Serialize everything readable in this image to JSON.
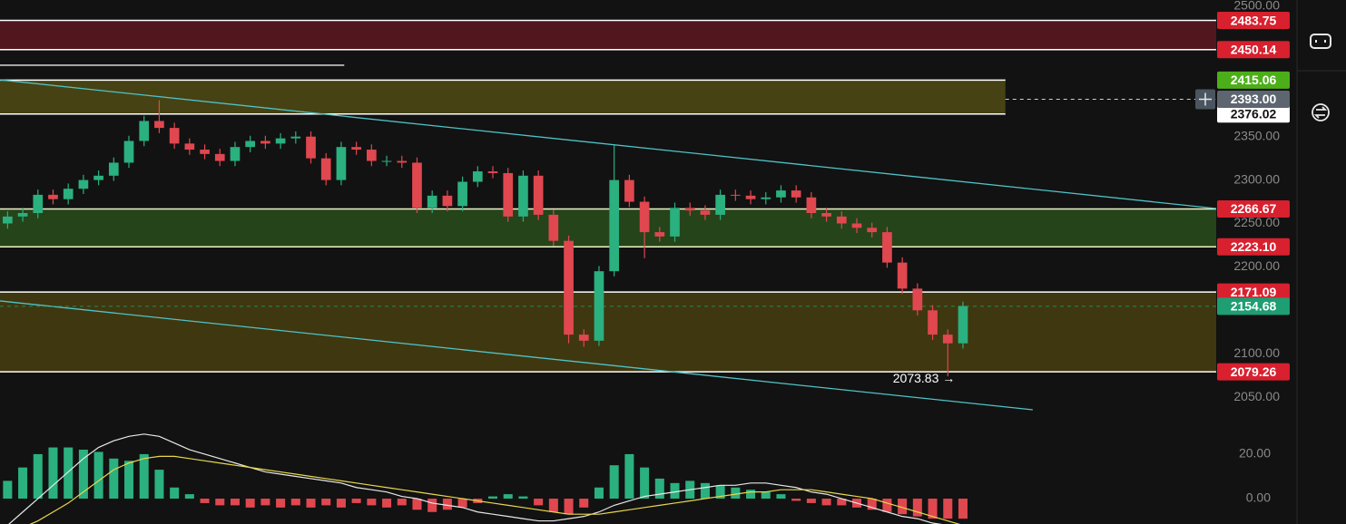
{
  "chart_data": [
    {
      "type": "candlestick",
      "xlim": [
        -0.5,
        79.7
      ],
      "ylim": [
        2016.7,
        2507.3
      ],
      "grid": false,
      "color_up": "#2bb07f",
      "color_down": "#e0474f",
      "open": [
        2250,
        2258,
        2262,
        2283,
        2278,
        2290,
        2300,
        2305,
        2320,
        2345,
        2368,
        2360,
        2342,
        2335,
        2330,
        2322,
        2338,
        2345,
        2342,
        2348,
        2350,
        2325,
        2300,
        2338,
        2335,
        2322,
        2322,
        2320,
        2268,
        2282,
        2270,
        2298,
        2310,
        2308,
        2258,
        2305,
        2260,
        2230,
        2122,
        2115,
        2195,
        2300,
        2275,
        2240,
        2235,
        2268,
        2265,
        2260,
        2283,
        2282,
        2278,
        2280,
        2288,
        2280,
        2262,
        2258,
        2250,
        2245,
        2240,
        2205,
        2175,
        2150,
        2122,
        2112
      ],
      "high": [
        2264,
        2268,
        2289,
        2289,
        2296,
        2306,
        2311,
        2326,
        2351,
        2374,
        2392,
        2366,
        2348,
        2341,
        2336,
        2344,
        2351,
        2351,
        2354,
        2356,
        2356,
        2331,
        2344,
        2344,
        2341,
        2328,
        2328,
        2326,
        2288,
        2288,
        2304,
        2316,
        2316,
        2314,
        2311,
        2311,
        2266,
        2236,
        2128,
        2201,
        2340,
        2306,
        2281,
        2246,
        2274,
        2274,
        2271,
        2289,
        2289,
        2288,
        2286,
        2294,
        2294,
        2286,
        2268,
        2264,
        2256,
        2251,
        2246,
        2211,
        2181,
        2156,
        2128,
        2160
      ],
      "low": [
        2244,
        2252,
        2256,
        2272,
        2272,
        2284,
        2294,
        2299,
        2314,
        2339,
        2354,
        2336,
        2329,
        2324,
        2316,
        2316,
        2332,
        2336,
        2336,
        2342,
        2319,
        2294,
        2294,
        2329,
        2316,
        2316,
        2314,
        2262,
        2262,
        2264,
        2264,
        2292,
        2302,
        2252,
        2252,
        2254,
        2224,
        2112,
        2108,
        2109,
        2189,
        2269,
        2210,
        2229,
        2229,
        2259,
        2254,
        2254,
        2276,
        2272,
        2272,
        2274,
        2274,
        2256,
        2252,
        2244,
        2239,
        2234,
        2199,
        2169,
        2144,
        2116,
        2074,
        2106
      ],
      "close": [
        2258,
        2262,
        2283,
        2278,
        2290,
        2300,
        2305,
        2320,
        2345,
        2368,
        2360,
        2342,
        2335,
        2330,
        2322,
        2338,
        2345,
        2342,
        2348,
        2350,
        2325,
        2300,
        2338,
        2335,
        2322,
        2322,
        2320,
        2268,
        2282,
        2270,
        2298,
        2310,
        2308,
        2258,
        2305,
        2260,
        2230,
        2122,
        2115,
        2195,
        2300,
        2275,
        2240,
        2235,
        2268,
        2265,
        2260,
        2283,
        2282,
        2278,
        2280,
        2288,
        2280,
        2262,
        2258,
        2250,
        2245,
        2240,
        2205,
        2175,
        2150,
        2122,
        2112,
        2155
      ],
      "yticks": [
        {
          "value": 2500,
          "label": "2500.00"
        },
        {
          "value": 2350,
          "label": "2350.00"
        },
        {
          "value": 2300,
          "label": "2300.00"
        },
        {
          "value": 2250,
          "label": "2250.00"
        },
        {
          "value": 2200,
          "label": "2200.00"
        },
        {
          "value": 2100,
          "label": "2100.00"
        },
        {
          "value": 2050,
          "label": "2050.00"
        }
      ],
      "zones": [
        {
          "range": [
            2450.14,
            2483.75
          ],
          "xrange": [
            -0.5,
            79.7
          ],
          "color": "#5a1820",
          "border": "#ffffff"
        },
        {
          "range": [
            2376.02,
            2415.06
          ],
          "xrange": [
            -0.5,
            65.8
          ],
          "color": "#4d4814",
          "border": "#ffffff"
        },
        {
          "range": [
            2223.1,
            2266.67
          ],
          "xrange": [
            -0.5,
            79.7
          ],
          "color": "#284a1c",
          "border": "#eef4c8"
        },
        {
          "range": [
            2079.26,
            2171.09
          ],
          "xrange": [
            -0.5,
            79.7
          ],
          "color": "#453c10",
          "border": "#ffffff"
        }
      ],
      "trend_lines": [
        {
          "x": [
            -0.5,
            79.7
          ],
          "y": [
            2415.4,
            2267.2
          ],
          "color": "#4fc3c8"
        },
        {
          "x": [
            -0.5,
            67.6
          ],
          "y": [
            2160.8,
            2035.5
          ],
          "color": "#4fc3c8"
        },
        {
          "x": [
            -0.5,
            22.2
          ],
          "y": [
            2432.2,
            2432.2
          ],
          "color": "#e8e8e8"
        }
      ],
      "price_labels": [
        {
          "value": 2483.75,
          "label": "2483.75",
          "color": "#d8202e",
          "text_color": "#ffffff"
        },
        {
          "value": 2450.14,
          "label": "2450.14",
          "color": "#d8202e",
          "text_color": "#ffffff"
        },
        {
          "value": 2415.06,
          "label": "2415.06",
          "color": "#4caf1a",
          "text_color": "#ffffff"
        },
        {
          "value": 2376.02,
          "label": "2376.02",
          "color": "#ffffff",
          "text_color": "#111111"
        },
        {
          "value": 2266.67,
          "label": "2266.67",
          "color": "#d8202e",
          "text_color": "#ffffff"
        },
        {
          "value": 2223.1,
          "label": "2223.10",
          "color": "#d8202e",
          "text_color": "#ffffff"
        },
        {
          "value": 2171.09,
          "label": "2171.09",
          "color": "#d8202e",
          "text_color": "#ffffff"
        },
        {
          "value": 2079.26,
          "label": "2079.26",
          "color": "#d8202e",
          "text_color": "#ffffff"
        }
      ],
      "last_price": {
        "value": 2154.68,
        "label": "2154.68",
        "color": "#1e9e72"
      },
      "crosshair": {
        "value": 2393,
        "label": "2393.00",
        "from_x": 65.8,
        "color": "#5d6670"
      },
      "annotations": [
        {
          "text": "2073.83 →",
          "x": 62,
          "y": 2073.83
        }
      ]
    },
    {
      "type": "macd",
      "xlim": [
        -0.5,
        79.7
      ],
      "ylim": [
        -11.4,
        32.6
      ],
      "yticks": [
        {
          "value": 20,
          "label": "20.00"
        },
        {
          "value": 0,
          "label": "0.00"
        }
      ],
      "color_up": "#2bb07f",
      "color_down": "#e0474f",
      "macd_color": "#e8e8e8",
      "signal_color": "#e8d84a",
      "values": [
        8,
        14,
        20,
        23,
        23,
        22,
        21,
        18,
        17,
        20,
        13,
        5,
        2,
        -2,
        -3,
        -3,
        -4,
        -3,
        -4,
        -3,
        -4,
        -3,
        -4,
        -2,
        -3,
        -4,
        -3,
        -5,
        -6,
        -5,
        -4,
        -2,
        1,
        2,
        1,
        -3,
        -6,
        -7,
        -4,
        5,
        15,
        20,
        14,
        9,
        7,
        8,
        7,
        6,
        5,
        4,
        3,
        2,
        -1,
        -2,
        -3,
        -3,
        -4,
        -5,
        -6,
        -7,
        -8,
        -9,
        -9,
        -9
      ],
      "macd": [
        -12,
        -6,
        0,
        6,
        12,
        18,
        23,
        26,
        28,
        29,
        28,
        25,
        22,
        20,
        18,
        16,
        14,
        12,
        11,
        10,
        9,
        8,
        7,
        5,
        4,
        3,
        1,
        0,
        -2,
        -3,
        -4,
        -6,
        -7,
        -8,
        -9,
        -10,
        -10,
        -9,
        -8,
        -6,
        -3,
        -1,
        1,
        2,
        3,
        4,
        5,
        6,
        6,
        7,
        7,
        6,
        5,
        3,
        2,
        0,
        -2,
        -4,
        -6,
        -8,
        -9,
        -11,
        -12,
        -13
      ],
      "signal": [
        -16,
        -13,
        -10,
        -6,
        -2,
        3,
        8,
        13,
        16,
        18,
        19,
        19,
        18,
        17,
        16,
        15,
        14,
        13,
        12,
        11,
        10,
        9,
        8,
        7,
        6,
        5,
        4,
        3,
        2,
        1,
        0,
        -1,
        -2,
        -3,
        -4,
        -5,
        -6,
        -7,
        -7,
        -7,
        -6,
        -5,
        -4,
        -3,
        -2,
        -1,
        0,
        1,
        2,
        3,
        3,
        4,
        4,
        4,
        3,
        2,
        1,
        0,
        -2,
        -4,
        -6,
        -8,
        -10,
        -12
      ]
    }
  ]
}
